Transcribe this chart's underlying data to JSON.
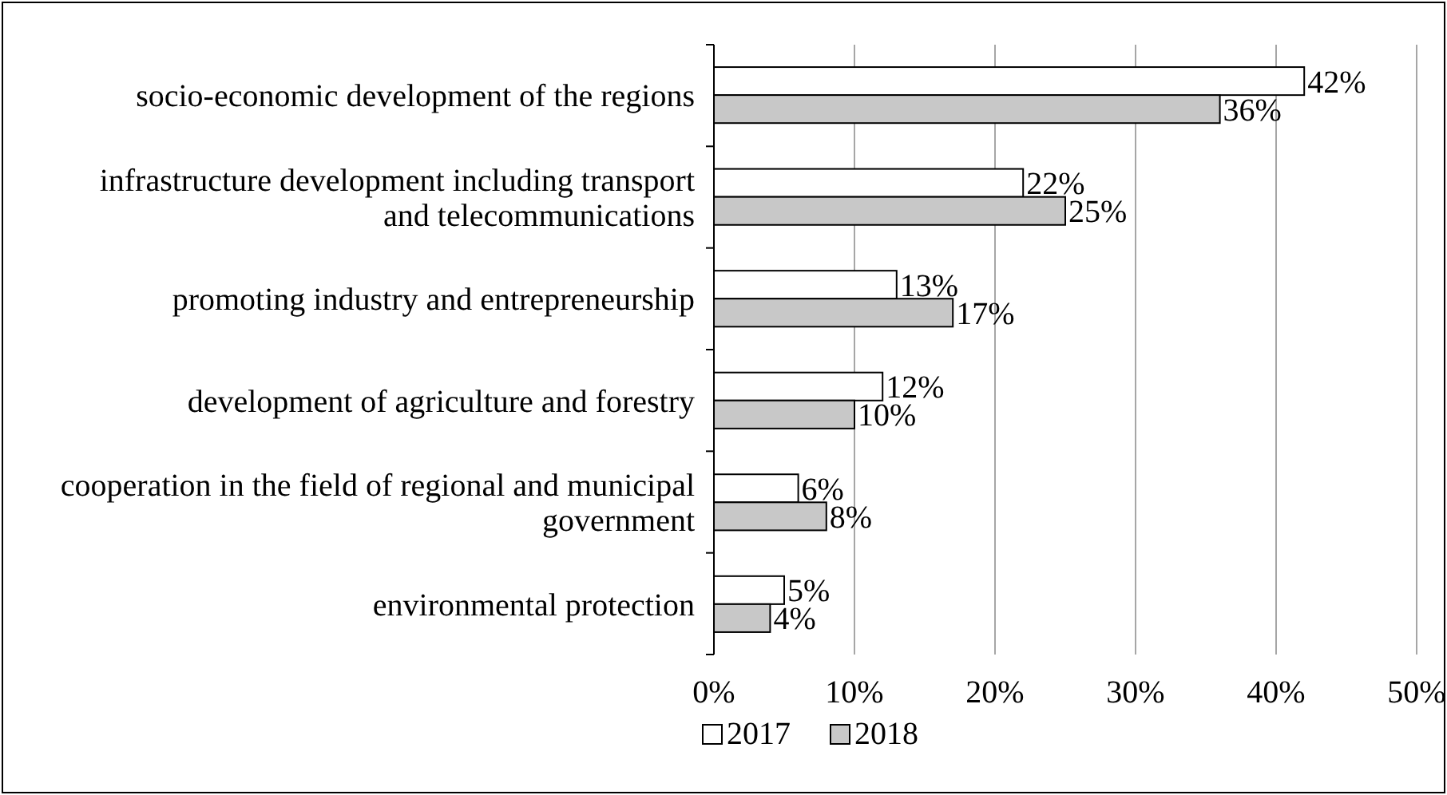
{
  "chart_data": {
    "type": "bar",
    "orientation": "horizontal",
    "categories": [
      "socio-economic development of the regions",
      "infrastructure development including transport and telecommunications",
      "promoting industry and entrepreneurship",
      "development of agriculture and forestry",
      "cooperation in the field of regional and municipal government",
      "environmental protection"
    ],
    "series": [
      {
        "name": "2017",
        "color": "#ffffff",
        "values": [
          42,
          22,
          13,
          12,
          6,
          5
        ],
        "value_labels": [
          "42%",
          "22%",
          "13%",
          "12%",
          "6%",
          "5%"
        ]
      },
      {
        "name": "2018",
        "color": "#c8c8c8",
        "values": [
          36,
          25,
          17,
          10,
          8,
          4
        ],
        "value_labels": [
          "36%",
          "25%",
          "17%",
          "10%",
          "8%",
          "4%"
        ]
      }
    ],
    "xlim": [
      0,
      50
    ],
    "xticks": [
      {
        "value": 0,
        "label": "0%"
      },
      {
        "value": 10,
        "label": "10%"
      },
      {
        "value": 20,
        "label": "20%"
      },
      {
        "value": 30,
        "label": "30%"
      },
      {
        "value": 40,
        "label": "40%"
      },
      {
        "value": 50,
        "label": "50%"
      }
    ],
    "grid": "x",
    "legend": "bottom"
  }
}
